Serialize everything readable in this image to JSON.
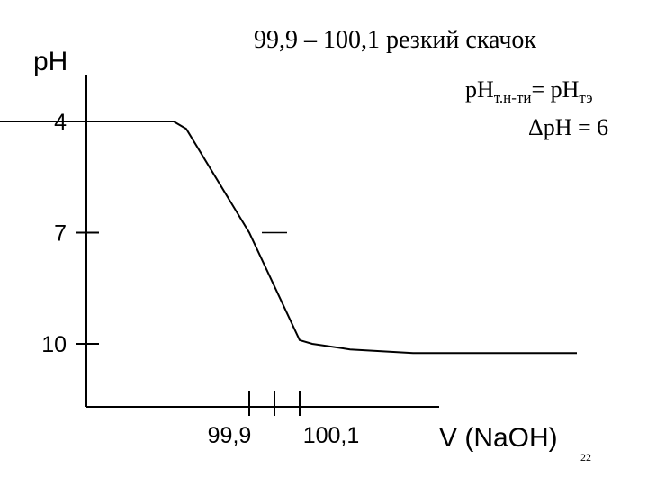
{
  "chart_data": {
    "type": "line",
    "ylabel": "pH",
    "xlabel": "V (NaOH)",
    "y_axis_inverted": true,
    "yticks": [
      "4",
      "7",
      "10"
    ],
    "xticks": [
      "99,9",
      "100,1"
    ],
    "series": [
      {
        "x": [
          98.9,
          99.6,
          99.65,
          99.9,
          100.1,
          100.15,
          100.3,
          100.55,
          101.2
        ],
        "y": [
          4.0,
          4.0,
          4.2,
          7.0,
          9.9,
          10.0,
          10.15,
          10.25,
          10.25
        ]
      }
    ],
    "equivalence_mark": {
      "x": 100.0,
      "y": 7.0
    },
    "annotations": {
      "line1": "99,9 – 100,1   резкий  скачок",
      "line2_main": "pH",
      "line2_sub": "т.н-ти",
      "line2_eq": "= pH",
      "line2_sub2": "тэ",
      "line3": "ΔpH = 6"
    }
  },
  "page_number": "22"
}
